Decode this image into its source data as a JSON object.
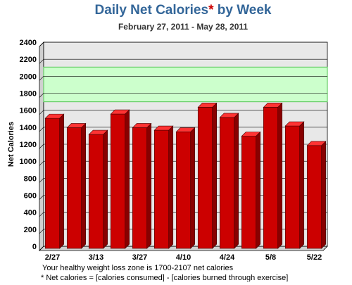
{
  "chart_data": {
    "type": "bar3d",
    "title": "Daily Net Calories* by Week",
    "subtitle": "February 27, 2011 - May 28, 2011",
    "y_label": "Net Calories",
    "categories": [
      "2/27",
      null,
      "3/13",
      null,
      "3/27",
      null,
      "4/10",
      null,
      "4/24",
      null,
      "5/8",
      null,
      "5/22"
    ],
    "values": [
      1530,
      1420,
      1340,
      1580,
      1420,
      1390,
      1370,
      1660,
      1540,
      1320,
      1660,
      1440,
      1210
    ],
    "color": "#cc0000",
    "healthy_zone": [
      1700,
      2107
    ],
    "zone_color": "#ccffcc",
    "ylim": [
      0,
      2400
    ],
    "yticks": [
      0,
      200,
      400,
      600,
      800,
      1000,
      1200,
      1400,
      1600,
      1800,
      2000,
      2200,
      2400
    ],
    "grid": true,
    "notes": [
      "Your healthy weight loss zone is 1700-2107 net calories",
      "*  Net calories  =  [calories consumed]  -  [calories burned through exercise]"
    ]
  }
}
